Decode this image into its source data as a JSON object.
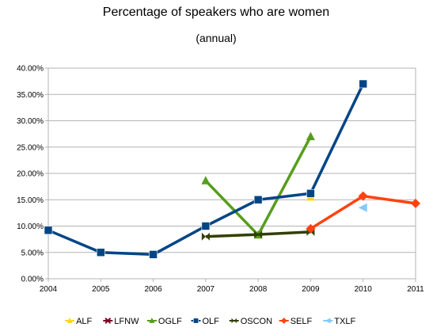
{
  "chart_data": {
    "type": "line",
    "title": "Percentage of speakers who are women",
    "subtitle": "(annual)",
    "xlabel": "",
    "ylabel": "",
    "x": [
      "2004",
      "2005",
      "2006",
      "2007",
      "2008",
      "2009",
      "2010",
      "2011"
    ],
    "xlim": [
      2004,
      2011
    ],
    "ylim": [
      0,
      40
    ],
    "y_ticks": [
      "0.00%",
      "5.00%",
      "10.00%",
      "15.00%",
      "20.00%",
      "25.00%",
      "30.00%",
      "35.00%",
      "40.00%"
    ],
    "grid": "horizontal",
    "legend_position": "bottom",
    "series": [
      {
        "name": "ALF",
        "color": "#ffd320",
        "marker": "triangle",
        "points": [
          [
            2009,
            15.5
          ]
        ]
      },
      {
        "name": "LFNW",
        "color": "#7e0021",
        "marker": "x",
        "points": []
      },
      {
        "name": "OGLF",
        "color": "#579d1c",
        "marker": "triangle",
        "points": [
          [
            2007,
            18.6
          ],
          [
            2008,
            8.3
          ],
          [
            2009,
            27.0
          ]
        ]
      },
      {
        "name": "OLF",
        "color": "#004586",
        "marker": "square",
        "points": [
          [
            2004,
            9.2
          ],
          [
            2005,
            5.0
          ],
          [
            2006,
            4.6
          ],
          [
            2007,
            10.0
          ],
          [
            2008,
            15.0
          ],
          [
            2009,
            16.2
          ],
          [
            2010,
            37.0
          ]
        ]
      },
      {
        "name": "OSCON",
        "color": "#314004",
        "marker": "bowtie",
        "points": [
          [
            2007,
            8.0
          ],
          [
            2008,
            8.4
          ],
          [
            2009,
            8.9
          ]
        ]
      },
      {
        "name": "SELF",
        "color": "#ff420e",
        "marker": "diamond",
        "points": [
          [
            2009,
            9.5
          ],
          [
            2010,
            15.7
          ],
          [
            2011,
            14.3
          ]
        ]
      },
      {
        "name": "TXLF",
        "color": "#83caff",
        "marker": "triangle-left",
        "points": [
          [
            2010,
            13.5
          ]
        ]
      }
    ]
  }
}
